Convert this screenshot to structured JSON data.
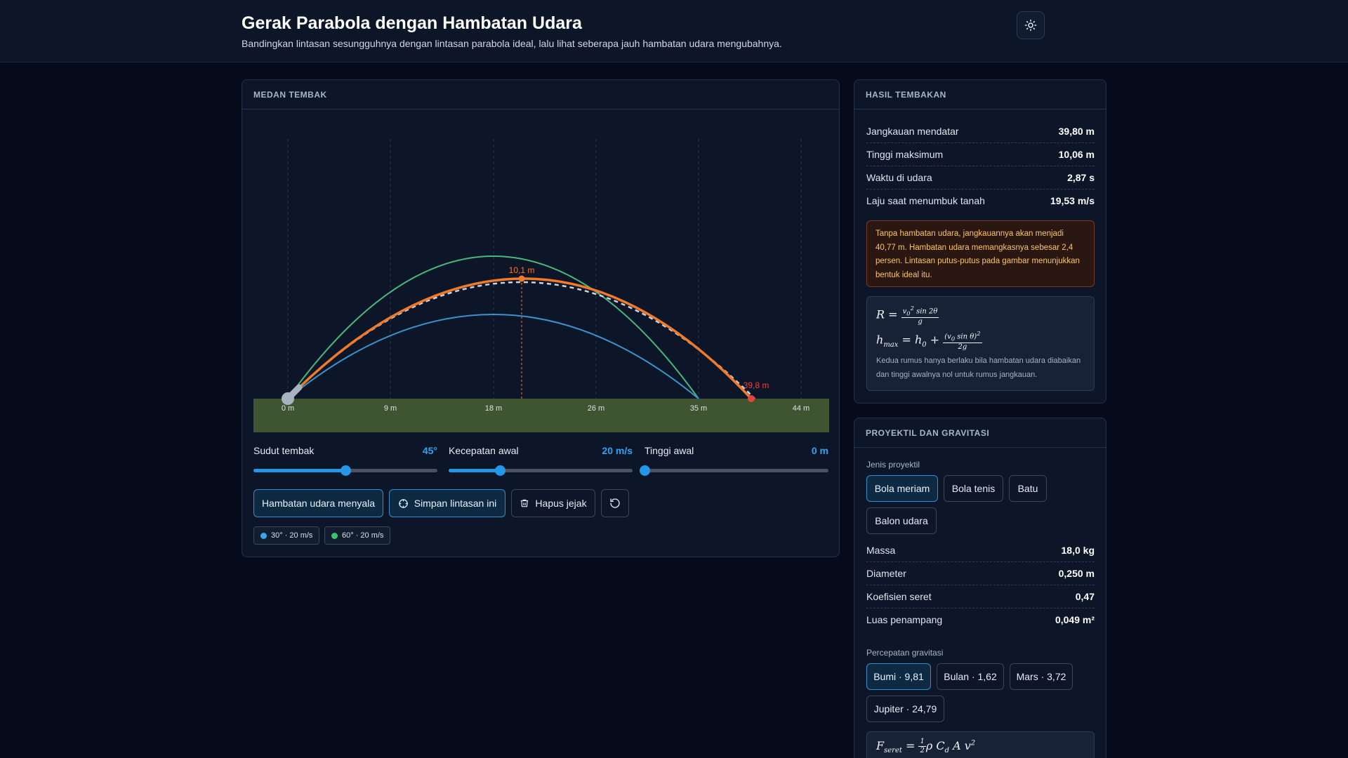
{
  "header": {
    "title": "Gerak Parabola dengan Hambatan Udara",
    "subtitle": "Bandingkan lintasan sesungguhnya dengan lintasan parabola ideal, lalu lihat seberapa jauh hambatan udara mengubahnya.",
    "theme_icon": "sun-icon"
  },
  "field": {
    "title": "MEDAN TEMBAK",
    "peak_label": "10,1 m",
    "landing_label": "39,8 m",
    "ticks": [
      "0 m",
      "9 m",
      "18 m",
      "26 m",
      "35 m",
      "44 m"
    ],
    "colors": {
      "main": "#f07a2a",
      "trace_30": "#3b93c9",
      "trace_60": "#4bb879",
      "ground": "#3f5430",
      "landing": "#e2453c"
    }
  },
  "controls": {
    "angle": {
      "label": "Sudut tembak",
      "value": "45°",
      "fraction": 0.5
    },
    "speed": {
      "label": "Kecepatan awal",
      "value": "20 m/s",
      "fraction": 0.28
    },
    "height": {
      "label": "Tinggi awal",
      "value": "0 m",
      "fraction": 0.0
    }
  },
  "buttons": {
    "air": "Hambatan udara menyala",
    "save": "Simpan lintasan ini",
    "clear": "Hapus jejak",
    "reset_icon": "reset-icon"
  },
  "traces": [
    {
      "label": "30° · 20 m/s",
      "color": "#3ba3e6"
    },
    {
      "label": "60° · 20 m/s",
      "color": "#3ec46d"
    }
  ],
  "results": {
    "title": "HASIL TEMBAKAN",
    "rows": [
      {
        "k": "Jangkauan mendatar",
        "v": "39,80 m"
      },
      {
        "k": "Tinggi maksimum",
        "v": "10,06 m"
      },
      {
        "k": "Waktu di udara",
        "v": "2,87 s"
      },
      {
        "k": "Laju saat menumbuk tanah",
        "v": "19,53 m/s"
      }
    ],
    "warning": "Tanpa hambatan udara, jangkauannya akan menjadi 40,77 m. Hambatan udara memangkasnya sebesar 2,4 persen. Lintasan putus-putus pada gambar menunjukkan bentuk ideal itu.",
    "formula_note": "Kedua rumus hanya berlaku bila hambatan udara diabaikan dan tinggi awalnya nol untuk rumus jangkauan."
  },
  "projectile": {
    "title": "PROYEKTIL DAN GRAVITASI",
    "type_label": "Jenis proyektil",
    "types": [
      "Bola meriam",
      "Bola tenis",
      "Batu",
      "Balon udara"
    ],
    "selected_type": "Bola meriam",
    "rows": [
      {
        "k": "Massa",
        "v": "18,0 kg"
      },
      {
        "k": "Diameter",
        "v": "0,250 m"
      },
      {
        "k": "Koefisien seret",
        "v": "0,47"
      },
      {
        "k": "Luas penampang",
        "v": "0,049 m²"
      }
    ],
    "gravity_label": "Percepatan gravitasi",
    "gravities": [
      "Bumi · 9,81",
      "Bulan · 1,62",
      "Mars · 3,72",
      "Jupiter · 24,79"
    ],
    "selected_gravity": "Bumi · 9,81"
  }
}
